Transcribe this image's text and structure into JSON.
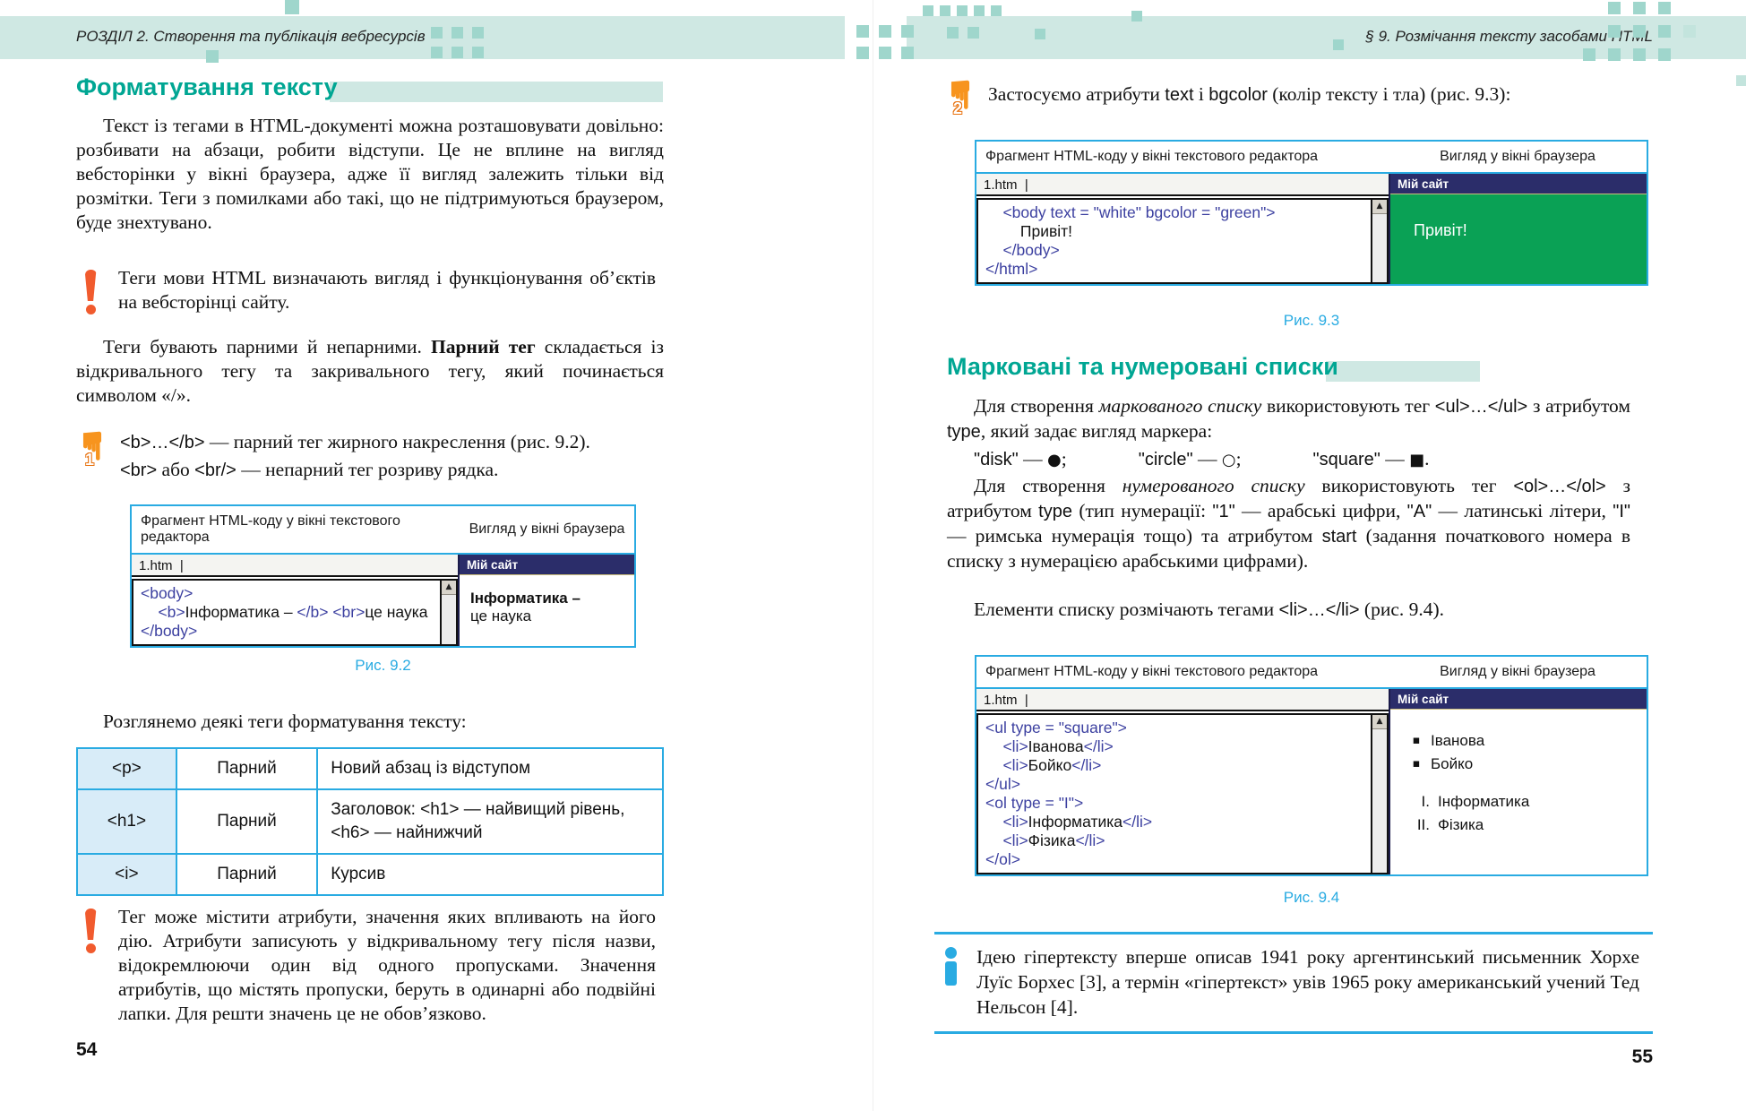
{
  "figs": {
    "header_editor": "Фрагмент HTML-коду у вікні текстового редактора",
    "header_browser": "Вигляд у вікні браузера",
    "tab_label": "1.htm",
    "tab_cursor": "|",
    "browser_title": "Мій сайт",
    "scroll_up": "▲"
  },
  "colors": {
    "teal_heading": "#00a693",
    "band_teal": "#cfe8e3",
    "figure_border_blue": "#29abe2",
    "code_tag_indigo": "#3c40a0",
    "browser_titlebar_navy": "#2b2d6a",
    "browser_green": "#0aa155",
    "warning_orange": "#f15b2e",
    "info_blue": "#29abe2",
    "table_cell_blue": "#d8ecf8"
  },
  "left": {
    "running_head": "РОЗДІЛ 2. Створення та публікація вебресурсів",
    "page_number": "54",
    "section_title": "Форматування тексту",
    "para1": "Текст із тегами в HTML-документі можна розташовувати довільно: розбивати на абзаци, робити відступи. Це не вплине на вигляд вебсторінки у вікні браузера, адже її вигляд залежить тільки від розмітки. Теги з помилками або такі, що не підтримуються браузером, буде знехтувано.",
    "warning1": "Теги мови HTML визначають вигляд і функціонування об’єктів на вебсторінці сайту.",
    "para2": [
      [
        "",
        "Теги бувають парними й непарними. "
      ],
      [
        "b",
        "Парний тег"
      ],
      [
        "",
        " складається із відкривального тегу та закривального тегу, який починається символом «/»."
      ]
    ],
    "step1": {
      "number": "1",
      "line1": [
        [
          "c",
          "<b>…</b>"
        ],
        [
          "",
          " — парний тег жирного накреслення (рис. 9.2)."
        ]
      ],
      "line2": [
        [
          "c",
          "<br>"
        ],
        [
          "",
          " або "
        ],
        [
          "c",
          "<br/>"
        ],
        [
          "",
          " — непарний тег розриву рядка."
        ]
      ]
    },
    "fig92": {
      "code": [
        [
          [
            "tag",
            "<body>"
          ]
        ],
        [
          [
            "tag",
            "    <b>"
          ],
          [
            "txt",
            "Інформатика – "
          ],
          [
            "tag",
            "</b> <br>"
          ],
          [
            "txt",
            "це наука"
          ]
        ],
        [
          [
            "tag",
            "</body>"
          ]
        ]
      ],
      "browser_line1": "Інформатика –",
      "browser_line2": "це наука",
      "caption": "Рис. 9.2"
    },
    "table_intro": "Розглянемо деякі теги форматування тексту:",
    "table": {
      "rows": [
        [
          "<p>",
          "Парний",
          "Новий абзац із відступом"
        ],
        [
          "<h1>",
          "Парний",
          "Заголовок: <h1> — найвищий рівень,\n<h6> — найнижчий"
        ],
        [
          "<i>",
          "Парний",
          "Курсив"
        ]
      ]
    },
    "warning2": "Тег може містити атрибути, значення яких впливають на його дію. Атрибути записують у відкривальному тегу після назви, відокремлюючи один від одного пропусками. Значення атрибутів, що містять пропуски, беруть в одинарні або подвійні лапки. Для решти значень це не обов’язково."
  },
  "right": {
    "running_head": "§ 9. Розмічання тексту засобами HTML",
    "page_number": "55",
    "step2": {
      "number": "2",
      "line1": [
        [
          "",
          "Застосуємо атрибути "
        ],
        [
          "c",
          "text"
        ],
        [
          "",
          " і "
        ],
        [
          "c",
          "bgcolor"
        ],
        [
          "",
          " (колір тексту і тла) (рис. 9.3):"
        ]
      ]
    },
    "fig93": {
      "code": [
        [
          [
            "tag",
            "    <body text = \"white\" bgcolor = \"green\">"
          ]
        ],
        [
          [
            "txt",
            "        Привіт!"
          ]
        ],
        [
          [
            "tag",
            "    </body>"
          ]
        ],
        [
          [
            "tag",
            "</html>"
          ]
        ]
      ],
      "browser_text": "Привіт!",
      "caption": "Рис. 9.3"
    },
    "section_title": "Марковані та нумеровані списки",
    "lists_p1": [
      [
        "",
        "Для створення "
      ],
      [
        "i",
        "маркованого списку"
      ],
      [
        "",
        " використовують тег "
      ],
      [
        "c",
        "<ul>…</ul>"
      ],
      [
        "",
        " з атрибутом "
      ],
      [
        "c",
        "type"
      ],
      [
        "",
        ", який задає вигляд маркера:"
      ]
    ],
    "markers_line": [
      [
        "c",
        "\"disk\""
      ],
      [
        "",
        " — "
      ],
      [
        "sym",
        "●"
      ],
      [
        "",
        ";"
      ],
      [
        "sp",
        " "
      ],
      [
        "c",
        "\"circle\""
      ],
      [
        "",
        " — "
      ],
      [
        "sym",
        "○"
      ],
      [
        "",
        ";"
      ],
      [
        "sp",
        " "
      ],
      [
        "c",
        "\"square\""
      ],
      [
        "",
        " — "
      ],
      [
        "sym",
        "■"
      ],
      [
        "",
        "."
      ]
    ],
    "lists_p2": [
      [
        "",
        "Для створення "
      ],
      [
        "i",
        "нумерованого списку"
      ],
      [
        "",
        " використовують тег "
      ],
      [
        "c",
        "<ol>…</ol>"
      ],
      [
        "",
        " з атрибутом "
      ],
      [
        "c",
        "type"
      ],
      [
        "",
        " (тип нумерації: "
      ],
      [
        "c",
        "\"1\""
      ],
      [
        "",
        " — арабські цифри, "
      ],
      [
        "c",
        "\"А\""
      ],
      [
        "",
        " — латинські літери, "
      ],
      [
        "c",
        "\"І\""
      ],
      [
        "",
        " — римська нумерація тощо) та атрибутом "
      ],
      [
        "c",
        "start"
      ],
      [
        "",
        " (задання початкового номера в списку з нумерацією арабськими цифрами)."
      ]
    ],
    "lists_p3": [
      [
        "",
        "Елементи списку розмічають тегами "
      ],
      [
        "c",
        "<li>…</li>"
      ],
      [
        "",
        " (рис. 9.4)."
      ]
    ],
    "fig94": {
      "code": [
        [
          [
            "tag",
            "<ul type = \"square\">"
          ]
        ],
        [
          [
            "tag",
            "    <li>"
          ],
          [
            "txt",
            "Іванова"
          ],
          [
            "tag",
            "</li>"
          ]
        ],
        [
          [
            "tag",
            "    <li>"
          ],
          [
            "txt",
            "Бойко"
          ],
          [
            "tag",
            "</li>"
          ]
        ],
        [
          [
            "tag",
            "</ul>"
          ]
        ],
        [
          [
            "tag",
            "<ol type = \"I\">"
          ]
        ],
        [
          [
            "tag",
            "    <li>"
          ],
          [
            "txt",
            "Інформатика"
          ],
          [
            "tag",
            "</li>"
          ]
        ],
        [
          [
            "tag",
            "    <li>"
          ],
          [
            "txt",
            "Фізика"
          ],
          [
            "tag",
            "</li>"
          ]
        ],
        [
          [
            "tag",
            "</ol>"
          ]
        ]
      ],
      "browser_ul": {
        "marker": "▪",
        "items": [
          "Іванова",
          "Бойко"
        ]
      },
      "browser_ol": {
        "markers": [
          "I.",
          "II."
        ],
        "items": [
          "Інформатика",
          "Фізика"
        ]
      },
      "caption": "Рис. 9.4"
    },
    "info_note": "Ідею гіпертексту вперше описав 1941 року аргентинський письменник Хорхе Луїс Борхес [3], а термін «гіпертекст» увів 1965 року американський учений Тед Нельсон [4]."
  }
}
